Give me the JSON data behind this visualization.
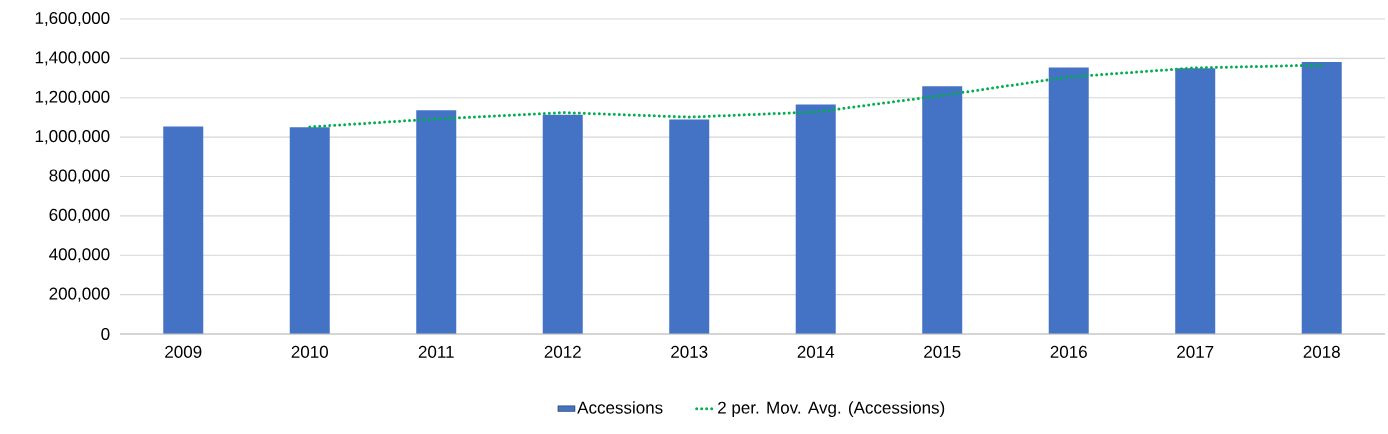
{
  "chart_data": {
    "type": "bar",
    "categories": [
      "2009",
      "2010",
      "2011",
      "2012",
      "2013",
      "2014",
      "2015",
      "2016",
      "2017",
      "2018"
    ],
    "series": [
      {
        "name": "Accessions",
        "color": "#4472c4",
        "values": [
          1054000,
          1050000,
          1136000,
          1114000,
          1090000,
          1166000,
          1258000,
          1354000,
          1350000,
          1382000
        ]
      },
      {
        "name": "2 per. Mov. Avg. (Accessions)",
        "type": "line",
        "color": "#00b050",
        "line_style": "dotted",
        "values": [
          null,
          1052000,
          1093000,
          1125000,
          1102000,
          1128000,
          1212000,
          1306000,
          1352000,
          1366000
        ]
      }
    ],
    "ylim": [
      0,
      1600000
    ],
    "yticks": [
      {
        "value": 0,
        "label": "0"
      },
      {
        "value": 200000,
        "label": "200,000"
      },
      {
        "value": 400000,
        "label": "400,000"
      },
      {
        "value": 600000,
        "label": "600,000"
      },
      {
        "value": 800000,
        "label": "800,000"
      },
      {
        "value": 1000000,
        "label": "1,000,000"
      },
      {
        "value": 1200000,
        "label": "1,200,000"
      },
      {
        "value": 1400000,
        "label": "1,400,000"
      },
      {
        "value": 1600000,
        "label": "1,600,000"
      }
    ],
    "grid": "y",
    "legend": "bottom"
  }
}
